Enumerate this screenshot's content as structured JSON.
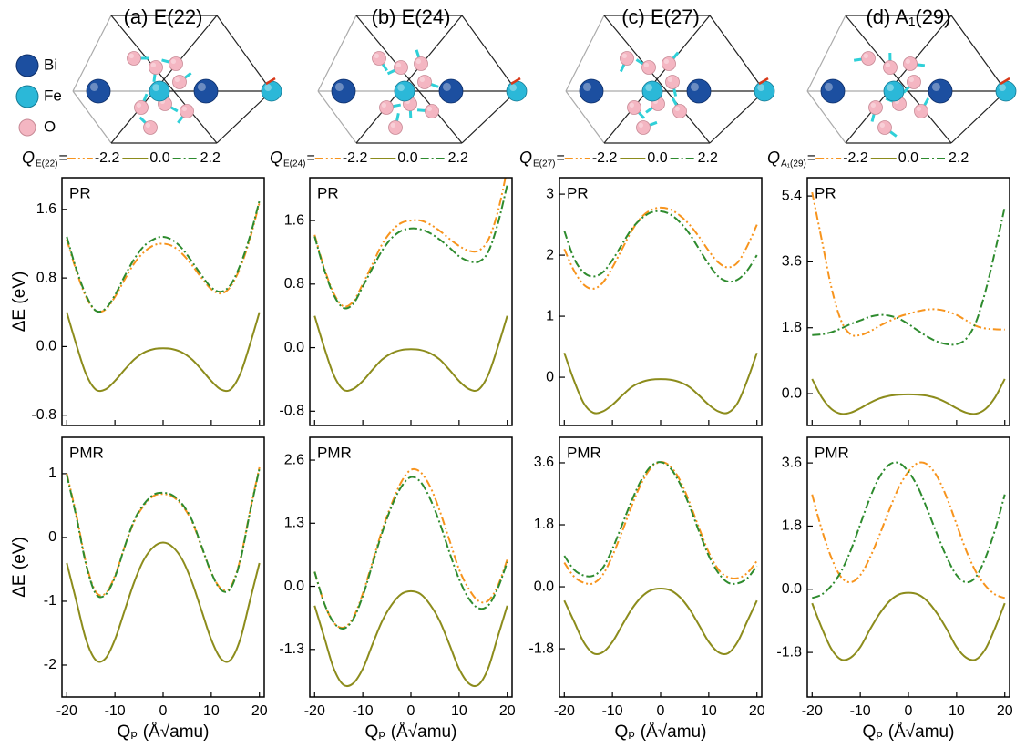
{
  "atom_legend": [
    "Bi",
    "Fe",
    "O"
  ],
  "chart_data": [
    {
      "type": "line",
      "title": "(a) E(22)",
      "panel_label": "PR",
      "y_label": "ΔE (eV)",
      "legend_title": "Q",
      "legend_title_sub": "E(22)",
      "legend_sign": "=",
      "x": [
        -20,
        -18,
        -16,
        -14,
        -12,
        -10,
        -8,
        -6,
        -4,
        -2,
        0,
        2,
        4,
        6,
        8,
        10,
        12,
        14,
        16,
        18,
        20
      ],
      "xlim": [
        -21,
        21
      ],
      "xticks": [
        -20,
        -10,
        0,
        10,
        20
      ],
      "x_tick_labels": false,
      "ylim": [
        -0.92,
        1.97
      ],
      "yticks": [
        -0.8,
        {
          "value": 0,
          "label": "0.0"
        },
        0.8,
        1.6
      ],
      "series": [
        {
          "name": "-2.2",
          "color": "#f7941d",
          "style": "dash-dot-dot",
          "values": [
            1.25,
            0.88,
            0.58,
            0.42,
            0.43,
            0.58,
            0.78,
            0.97,
            1.1,
            1.18,
            1.2,
            1.17,
            1.08,
            0.95,
            0.8,
            0.67,
            0.62,
            0.7,
            0.92,
            1.25,
            1.68
          ]
        },
        {
          "name": "0.0",
          "color": "#8c8c1c",
          "style": "solid",
          "values": [
            0.4,
            0.02,
            -0.32,
            -0.5,
            -0.5,
            -0.4,
            -0.27,
            -0.15,
            -0.07,
            -0.03,
            -0.02,
            -0.03,
            -0.07,
            -0.15,
            -0.27,
            -0.4,
            -0.5,
            -0.5,
            -0.32,
            0.02,
            0.4
          ]
        },
        {
          "name": "2.2",
          "color": "#2e8b2e",
          "style": "dash-dot",
          "values": [
            1.28,
            0.9,
            0.6,
            0.42,
            0.44,
            0.6,
            0.82,
            1.02,
            1.17,
            1.25,
            1.28,
            1.24,
            1.14,
            0.99,
            0.83,
            0.69,
            0.64,
            0.72,
            0.95,
            1.28,
            1.7
          ]
        }
      ]
    },
    {
      "type": "line",
      "panel_label": "PMR",
      "y_label": "ΔE (eV)",
      "x_label": "Qₚ (Å√amu)",
      "x": [
        -20,
        -18,
        -16,
        -14,
        -12,
        -10,
        -8,
        -6,
        -4,
        -2,
        0,
        2,
        4,
        6,
        8,
        10,
        12,
        14,
        16,
        18,
        20
      ],
      "xlim": [
        -21,
        21
      ],
      "xticks": [
        -20,
        -10,
        0,
        10,
        20
      ],
      "x_tick_labels": true,
      "ylim": [
        -2.5,
        1.57
      ],
      "yticks": [
        -2,
        -1,
        0,
        1
      ],
      "series": [
        {
          "color": "#f7941d",
          "style": "dash-dot-dot",
          "values": [
            1.0,
            0.35,
            -0.4,
            -0.85,
            -0.88,
            -0.6,
            -0.15,
            0.25,
            0.5,
            0.65,
            0.68,
            0.64,
            0.5,
            0.25,
            -0.15,
            -0.55,
            -0.8,
            -0.78,
            -0.35,
            0.4,
            1.1
          ]
        },
        {
          "color": "#8c8c1c",
          "style": "solid",
          "values": [
            -0.4,
            -1.0,
            -1.6,
            -1.92,
            -1.9,
            -1.6,
            -1.15,
            -0.7,
            -0.35,
            -0.15,
            -0.08,
            -0.15,
            -0.35,
            -0.7,
            -1.15,
            -1.6,
            -1.9,
            -1.92,
            -1.6,
            -1.0,
            -0.4
          ]
        },
        {
          "color": "#2e8b2e",
          "style": "dash-dot",
          "values": [
            0.98,
            0.32,
            -0.42,
            -0.88,
            -0.9,
            -0.62,
            -0.15,
            0.27,
            0.52,
            0.67,
            0.7,
            0.66,
            0.52,
            0.27,
            -0.14,
            -0.55,
            -0.82,
            -0.8,
            -0.37,
            0.38,
            1.08
          ]
        }
      ]
    },
    {
      "type": "line",
      "title": "(b) E(24)",
      "panel_label": "PR",
      "legend_title": "Q",
      "legend_title_sub": "E(24)",
      "legend_sign": "=",
      "x": [
        -20,
        -18,
        -16,
        -14,
        -12,
        -10,
        -8,
        -6,
        -4,
        -2,
        0,
        2,
        4,
        6,
        8,
        10,
        12,
        14,
        16,
        18,
        20
      ],
      "xlim": [
        -21,
        21
      ],
      "xticks": [
        -20,
        -10,
        0,
        10,
        20
      ],
      "x_tick_labels": false,
      "ylim": [
        -0.98,
        2.14
      ],
      "yticks": [
        -0.8,
        {
          "value": 0,
          "label": "0.0"
        },
        0.8,
        1.6
      ],
      "series": [
        {
          "name": "-2.2",
          "color": "#f7941d",
          "style": "dash-dot-dot",
          "values": [
            1.42,
            1.0,
            0.68,
            0.52,
            0.58,
            0.8,
            1.05,
            1.3,
            1.47,
            1.57,
            1.6,
            1.6,
            1.55,
            1.47,
            1.37,
            1.28,
            1.22,
            1.22,
            1.35,
            1.7,
            2.25
          ]
        },
        {
          "name": "0.0",
          "color": "#8c8c1c",
          "style": "solid",
          "values": [
            0.4,
            0.0,
            -0.35,
            -0.53,
            -0.52,
            -0.42,
            -0.28,
            -0.15,
            -0.07,
            -0.03,
            -0.02,
            -0.03,
            -0.07,
            -0.15,
            -0.28,
            -0.42,
            -0.52,
            -0.53,
            -0.35,
            0.0,
            0.4
          ]
        },
        {
          "name": "2.2",
          "color": "#2e8b2e",
          "style": "dash-dot",
          "values": [
            1.4,
            0.98,
            0.66,
            0.5,
            0.55,
            0.77,
            1.0,
            1.22,
            1.38,
            1.47,
            1.5,
            1.49,
            1.44,
            1.36,
            1.26,
            1.15,
            1.09,
            1.08,
            1.2,
            1.55,
            2.05
          ]
        }
      ]
    },
    {
      "type": "line",
      "panel_label": "PMR",
      "x_label": "Qₚ (Å√amu)",
      "x": [
        -20,
        -18,
        -16,
        -14,
        -12,
        -10,
        -8,
        -6,
        -4,
        -2,
        0,
        2,
        4,
        6,
        8,
        10,
        12,
        14,
        16,
        18,
        20
      ],
      "xlim": [
        -21,
        21
      ],
      "xticks": [
        -20,
        -10,
        0,
        10,
        20
      ],
      "x_tick_labels": true,
      "ylim": [
        -2.28,
        3.07
      ],
      "yticks": [
        -1.3,
        {
          "value": 0,
          "label": "0.0"
        },
        1.3,
        2.6
      ],
      "series": [
        {
          "color": "#f7941d",
          "style": "dash-dot-dot",
          "values": [
            0.3,
            -0.35,
            -0.75,
            -0.85,
            -0.65,
            -0.15,
            0.5,
            1.15,
            1.7,
            2.15,
            2.4,
            2.35,
            2.05,
            1.55,
            0.95,
            0.35,
            -0.05,
            -0.3,
            -0.3,
            0.0,
            0.55
          ]
        },
        {
          "color": "#8c8c1c",
          "style": "solid",
          "values": [
            -0.4,
            -1.05,
            -1.7,
            -2.03,
            -2.0,
            -1.7,
            -1.2,
            -0.72,
            -0.38,
            -0.16,
            -0.1,
            -0.16,
            -0.38,
            -0.72,
            -1.2,
            -1.7,
            -2.0,
            -2.03,
            -1.7,
            -1.05,
            -0.4
          ]
        },
        {
          "color": "#2e8b2e",
          "style": "dash-dot",
          "values": [
            0.3,
            -0.35,
            -0.75,
            -0.87,
            -0.68,
            -0.2,
            0.45,
            1.1,
            1.65,
            2.05,
            2.25,
            2.15,
            1.8,
            1.3,
            0.7,
            0.15,
            -0.25,
            -0.45,
            -0.4,
            -0.05,
            0.5
          ]
        }
      ]
    },
    {
      "type": "line",
      "title": "(c) E(27)",
      "panel_label": "PR",
      "legend_title": "Q",
      "legend_title_sub": "E(27)",
      "legend_sign": "=",
      "x": [
        -20,
        -18,
        -16,
        -14,
        -12,
        -10,
        -8,
        -6,
        -4,
        -2,
        0,
        2,
        4,
        6,
        8,
        10,
        12,
        14,
        16,
        18,
        20
      ],
      "xlim": [
        -21,
        21
      ],
      "xticks": [
        -20,
        -10,
        0,
        10,
        20
      ],
      "x_tick_labels": false,
      "ylim": [
        -0.79,
        3.27
      ],
      "yticks": [
        0,
        1,
        2,
        3
      ],
      "series": [
        {
          "name": "-2.2",
          "color": "#f7941d",
          "style": "dash-dot-dot",
          "values": [
            2.1,
            1.75,
            1.52,
            1.45,
            1.55,
            1.8,
            2.1,
            2.4,
            2.62,
            2.74,
            2.78,
            2.75,
            2.65,
            2.5,
            2.3,
            2.07,
            1.88,
            1.8,
            1.88,
            2.15,
            2.5
          ]
        },
        {
          "name": "0.0",
          "color": "#8c8c1c",
          "style": "solid",
          "values": [
            0.4,
            -0.05,
            -0.42,
            -0.58,
            -0.56,
            -0.45,
            -0.3,
            -0.16,
            -0.08,
            -0.04,
            -0.03,
            -0.04,
            -0.08,
            -0.16,
            -0.3,
            -0.45,
            -0.56,
            -0.58,
            -0.42,
            -0.05,
            0.4
          ]
        },
        {
          "name": "2.2",
          "color": "#2e8b2e",
          "style": "dash-dot",
          "values": [
            2.4,
            1.95,
            1.72,
            1.65,
            1.72,
            1.92,
            2.18,
            2.43,
            2.6,
            2.7,
            2.72,
            2.67,
            2.54,
            2.35,
            2.1,
            1.85,
            1.65,
            1.57,
            1.6,
            1.75,
            2.0
          ]
        }
      ]
    },
    {
      "type": "line",
      "panel_label": "PMR",
      "x_label": "Qₚ (Å√amu)",
      "x": [
        -20,
        -18,
        -16,
        -14,
        -12,
        -10,
        -8,
        -6,
        -4,
        -2,
        0,
        2,
        4,
        6,
        8,
        10,
        12,
        14,
        16,
        18,
        20
      ],
      "xlim": [
        -21,
        21
      ],
      "xticks": [
        -20,
        -10,
        0,
        10,
        20
      ],
      "x_tick_labels": true,
      "ylim": [
        -3.2,
        4.34
      ],
      "yticks": [
        -1.8,
        {
          "value": 0,
          "label": "0.0"
        },
        1.8,
        3.6
      ],
      "series": [
        {
          "color": "#f7941d",
          "style": "dash-dot-dot",
          "values": [
            0.7,
            0.3,
            0.12,
            0.1,
            0.35,
            0.9,
            1.6,
            2.35,
            3.0,
            3.45,
            3.62,
            3.5,
            3.1,
            2.45,
            1.7,
            1.0,
            0.5,
            0.28,
            0.25,
            0.4,
            0.75
          ]
        },
        {
          "color": "#8c8c1c",
          "style": "solid",
          "values": [
            -0.4,
            -1.0,
            -1.6,
            -1.93,
            -1.9,
            -1.6,
            -1.12,
            -0.65,
            -0.3,
            -0.1,
            -0.05,
            -0.1,
            -0.3,
            -0.65,
            -1.12,
            -1.6,
            -1.9,
            -1.93,
            -1.6,
            -1.0,
            -0.4
          ]
        },
        {
          "color": "#2e8b2e",
          "style": "dash-dot",
          "values": [
            0.9,
            0.5,
            0.33,
            0.32,
            0.55,
            1.1,
            1.8,
            2.5,
            3.1,
            3.5,
            3.62,
            3.45,
            3.0,
            2.35,
            1.6,
            0.9,
            0.4,
            0.12,
            0.1,
            0.25,
            0.6
          ]
        }
      ]
    },
    {
      "type": "line",
      "title": "(d) A₁(29)",
      "panel_label": "PR",
      "legend_title": "Q",
      "legend_title_sub": "A₁(29)",
      "legend_sign": "=",
      "x": [
        -20,
        -18,
        -16,
        -14,
        -12,
        -10,
        -8,
        -6,
        -4,
        -2,
        0,
        2,
        4,
        6,
        8,
        10,
        12,
        14,
        16,
        18,
        20
      ],
      "xlim": [
        -21,
        21
      ],
      "xticks": [
        -20,
        -10,
        0,
        10,
        20
      ],
      "x_tick_labels": false,
      "ylim": [
        -0.87,
        5.9
      ],
      "yticks": [
        {
          "value": 0,
          "label": "0.0"
        },
        1.8,
        3.6,
        5.4
      ],
      "series": [
        {
          "name": "-2.2",
          "color": "#f7941d",
          "style": "dash-dot-dot",
          "values": [
            5.5,
            4.2,
            2.9,
            2.0,
            1.62,
            1.6,
            1.7,
            1.85,
            1.98,
            2.1,
            2.18,
            2.25,
            2.3,
            2.3,
            2.25,
            2.15,
            2.0,
            1.85,
            1.78,
            1.76,
            1.75
          ]
        },
        {
          "name": "0.0",
          "color": "#8c8c1c",
          "style": "solid",
          "values": [
            0.4,
            -0.1,
            -0.42,
            -0.55,
            -0.52,
            -0.4,
            -0.25,
            -0.13,
            -0.06,
            -0.03,
            -0.02,
            -0.03,
            -0.06,
            -0.13,
            -0.25,
            -0.4,
            -0.52,
            -0.55,
            -0.42,
            -0.1,
            0.4
          ]
        },
        {
          "name": "2.2",
          "color": "#2e8b2e",
          "style": "dash-dot",
          "values": [
            1.6,
            1.62,
            1.68,
            1.78,
            1.9,
            2.0,
            2.1,
            2.15,
            2.13,
            2.05,
            1.9,
            1.72,
            1.55,
            1.42,
            1.35,
            1.35,
            1.5,
            1.95,
            2.8,
            3.9,
            5.1
          ]
        }
      ]
    },
    {
      "type": "line",
      "panel_label": "PMR",
      "x_label": "Qₚ (Å√amu)",
      "x": [
        -20,
        -18,
        -16,
        -14,
        -12,
        -10,
        -8,
        -6,
        -4,
        -2,
        0,
        2,
        4,
        6,
        8,
        10,
        12,
        14,
        16,
        18,
        20
      ],
      "xlim": [
        -21,
        21
      ],
      "xticks": [
        -20,
        -10,
        0,
        10,
        20
      ],
      "x_tick_labels": true,
      "ylim": [
        -3.07,
        4.33
      ],
      "yticks": [
        -1.8,
        {
          "value": 0,
          "label": "0.0"
        },
        1.8,
        3.6
      ],
      "series": [
        {
          "color": "#f7941d",
          "style": "dash-dot-dot",
          "values": [
            2.7,
            1.7,
            0.9,
            0.35,
            0.2,
            0.4,
            0.9,
            1.55,
            2.25,
            2.9,
            3.35,
            3.6,
            3.55,
            3.2,
            2.6,
            1.85,
            1.1,
            0.5,
            0.1,
            -0.15,
            -0.25
          ]
        },
        {
          "color": "#8c8c1c",
          "style": "solid",
          "values": [
            -0.4,
            -1.1,
            -1.7,
            -2.0,
            -1.95,
            -1.65,
            -1.15,
            -0.7,
            -0.35,
            -0.15,
            -0.1,
            -0.15,
            -0.35,
            -0.7,
            -1.15,
            -1.65,
            -1.95,
            -2.0,
            -1.7,
            -1.1,
            -0.4
          ]
        },
        {
          "color": "#2e8b2e",
          "style": "dash-dot",
          "values": [
            -0.25,
            -0.15,
            0.1,
            0.5,
            1.1,
            1.85,
            2.6,
            3.2,
            3.55,
            3.6,
            3.35,
            2.9,
            2.25,
            1.55,
            0.9,
            0.4,
            0.2,
            0.35,
            0.9,
            1.7,
            2.7
          ]
        }
      ]
    }
  ]
}
